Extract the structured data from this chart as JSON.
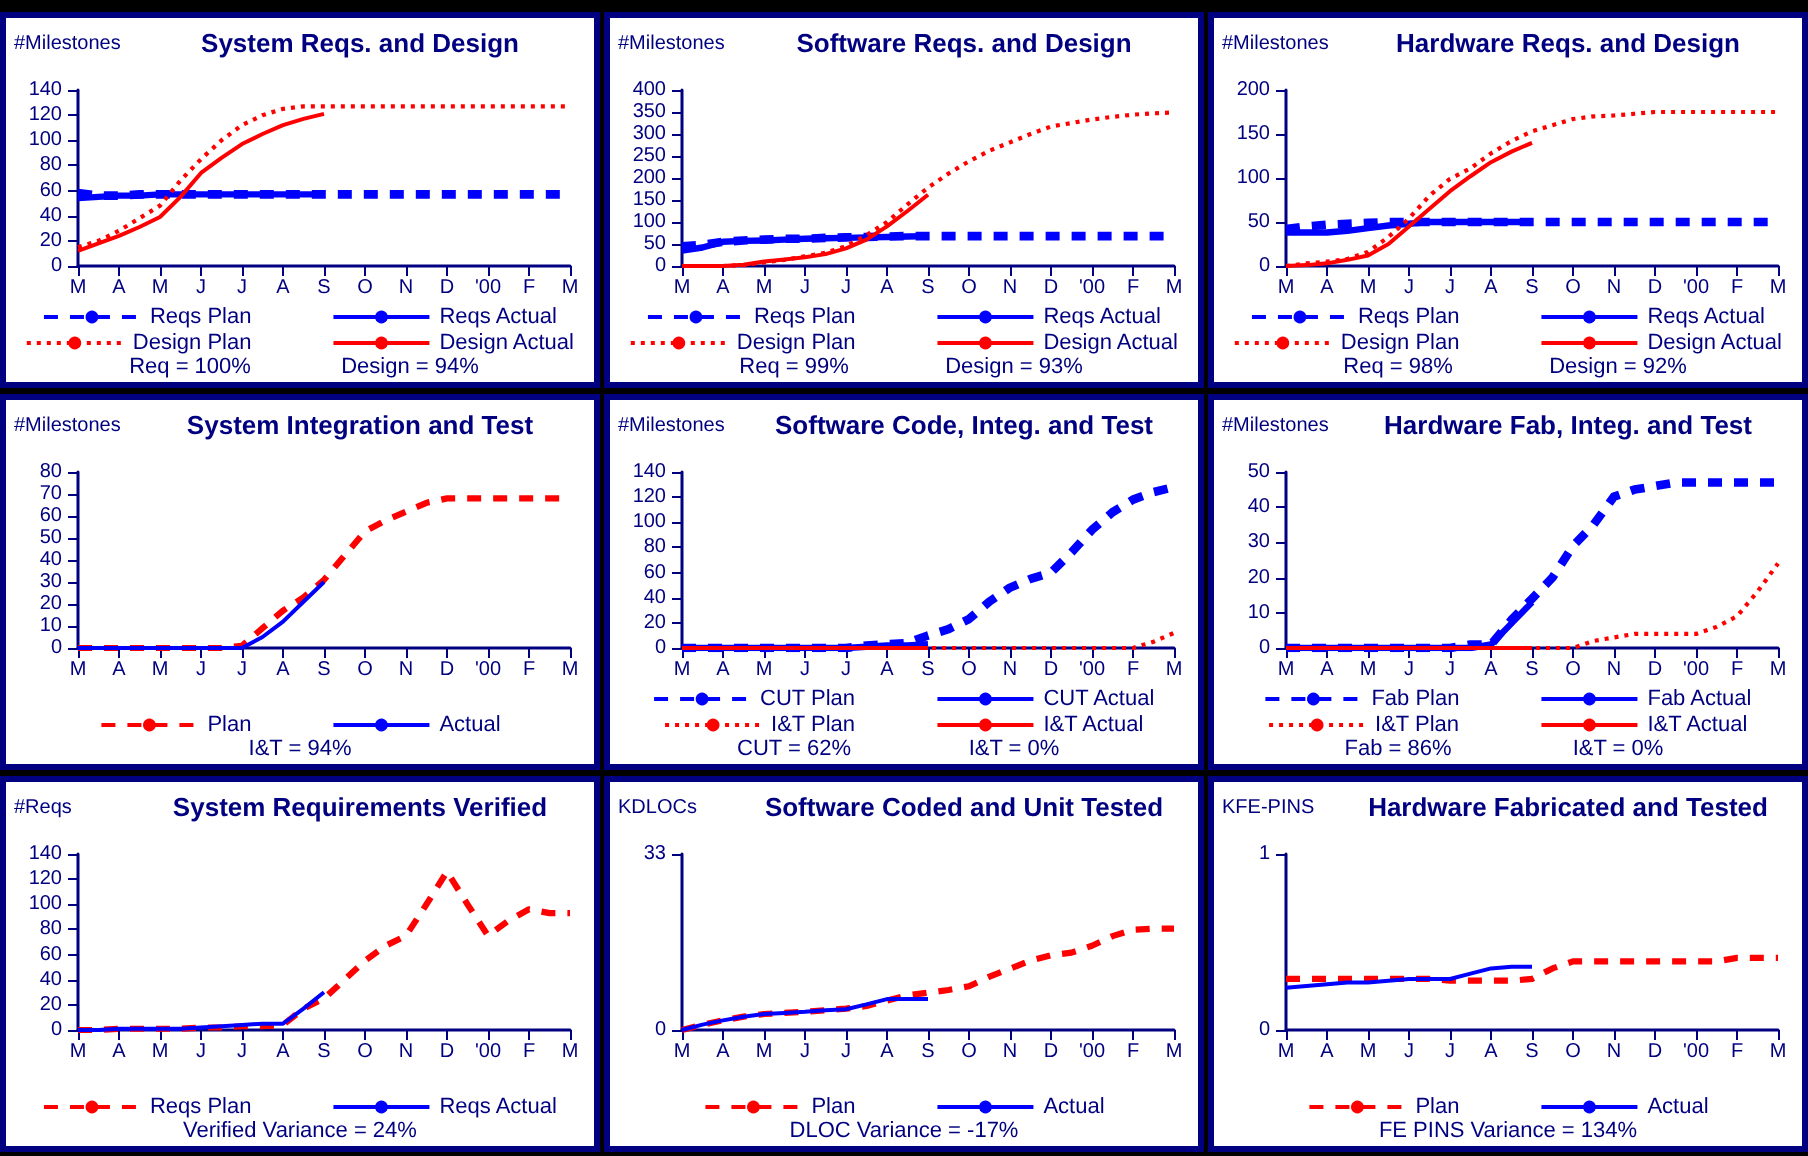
{
  "chart_data": [
    {
      "type": "line",
      "title": "System Reqs. and Design",
      "ylabel": "#Milestones",
      "categories": [
        "M",
        null,
        "A",
        null,
        "M",
        null,
        "J",
        null,
        "J",
        null,
        "A",
        null,
        "S",
        null,
        "O",
        null,
        "N",
        null,
        "D",
        null,
        "'00",
        null,
        "F",
        null,
        "M"
      ],
      "ylim": [
        0,
        140
      ],
      "yticks": [
        0,
        20,
        40,
        60,
        80,
        100,
        120,
        140
      ],
      "legend": "bottom",
      "marker": "none",
      "annotations": [
        "Req = 100%",
        "Design = 94%"
      ],
      "series": [
        {
          "name": "Reqs Plan",
          "color": "#0000ff",
          "line_style": "dashed",
          "values": [
            58,
            56,
            56,
            57,
            57,
            57,
            57,
            57,
            57,
            57,
            57,
            57,
            57,
            57,
            57,
            57,
            57,
            57,
            57,
            57,
            57,
            57,
            57,
            57,
            57
          ]
        },
        {
          "name": "Reqs Actual",
          "color": "#0000ff",
          "line_style": "solid",
          "values": [
            54,
            55,
            56,
            56,
            57,
            57,
            57,
            57,
            57,
            57,
            57,
            57,
            57,
            null,
            null,
            null,
            null,
            null,
            null,
            null,
            null,
            null,
            null,
            null,
            null
          ]
        },
        {
          "name": "Design Plan",
          "color": "#ff0000",
          "line_style": "dotted",
          "values": [
            15,
            20,
            28,
            38,
            48,
            68,
            85,
            100,
            112,
            120,
            125,
            127,
            127,
            127,
            127,
            127,
            127,
            127,
            127,
            127,
            127,
            127,
            127,
            127,
            127
          ]
        },
        {
          "name": "Design Actual",
          "color": "#ff0000",
          "line_style": "solid",
          "values": [
            12,
            18,
            24,
            31,
            39,
            55,
            74,
            86,
            97,
            105,
            112,
            117,
            121,
            null,
            null,
            null,
            null,
            null,
            null,
            null,
            null,
            null,
            null,
            null,
            null
          ]
        }
      ]
    },
    {
      "type": "line",
      "title": "Software Reqs. and Design",
      "ylabel": "#Milestones",
      "categories": [
        "M",
        null,
        "A",
        null,
        "M",
        null,
        "J",
        null,
        "J",
        null,
        "A",
        null,
        "S",
        null,
        "O",
        null,
        "N",
        null,
        "D",
        null,
        "'00",
        null,
        "F",
        null,
        "M"
      ],
      "ylim": [
        0,
        400
      ],
      "yticks": [
        0,
        50,
        100,
        150,
        200,
        250,
        300,
        350,
        400
      ],
      "legend": "bottom",
      "marker": "none",
      "annotations": [
        "Req = 99%",
        "Design = 93%"
      ],
      "series": [
        {
          "name": "Reqs Plan",
          "color": "#0000ff",
          "line_style": "dashed",
          "values": [
            45,
            48,
            55,
            58,
            60,
            62,
            62,
            64,
            65,
            66,
            67,
            68,
            68,
            68,
            68,
            68,
            68,
            68,
            68,
            68,
            68,
            68,
            68,
            68,
            68
          ]
        },
        {
          "name": "Reqs Actual",
          "color": "#0000ff",
          "line_style": "solid",
          "values": [
            35,
            42,
            55,
            57,
            58,
            60,
            62,
            63,
            64,
            65,
            66,
            67,
            68,
            null,
            null,
            null,
            null,
            null,
            null,
            null,
            null,
            null,
            null,
            null,
            null
          ]
        },
        {
          "name": "Design Plan",
          "color": "#ff0000",
          "line_style": "dotted",
          "values": [
            0,
            0,
            0,
            2,
            8,
            14,
            22,
            30,
            45,
            70,
            100,
            140,
            178,
            210,
            238,
            262,
            281,
            300,
            317,
            325,
            333,
            339,
            344,
            347,
            349
          ]
        },
        {
          "name": "Design Actual",
          "color": "#ff0000",
          "line_style": "solid",
          "values": [
            0,
            0,
            0,
            3,
            10,
            15,
            20,
            27,
            40,
            60,
            90,
            125,
            162,
            null,
            null,
            null,
            null,
            null,
            null,
            null,
            null,
            null,
            null,
            null,
            null
          ]
        }
      ]
    },
    {
      "type": "line",
      "title": "Hardware Reqs. and Design",
      "ylabel": "#Milestones",
      "categories": [
        "M",
        null,
        "A",
        null,
        "M",
        null,
        "J",
        null,
        "J",
        null,
        "A",
        null,
        "S",
        null,
        "O",
        null,
        "N",
        null,
        "D",
        null,
        "'00",
        null,
        "F",
        null,
        "M"
      ],
      "ylim": [
        0,
        200
      ],
      "yticks": [
        0,
        50,
        100,
        150,
        200
      ],
      "legend": "bottom",
      "marker": "none",
      "annotations": [
        "Req = 98%",
        "Design = 92%"
      ],
      "series": [
        {
          "name": "Reqs Plan",
          "color": "#0000ff",
          "line_style": "dashed",
          "values": [
            42,
            45,
            47,
            48,
            49,
            50,
            50,
            50,
            50,
            50,
            50,
            50,
            50,
            50,
            50,
            50,
            50,
            50,
            50,
            50,
            50,
            50,
            50,
            50,
            50
          ]
        },
        {
          "name": "Reqs Actual",
          "color": "#0000ff",
          "line_style": "solid",
          "values": [
            38,
            38,
            38,
            40,
            43,
            46,
            48,
            50,
            50,
            50,
            50,
            50,
            50,
            null,
            null,
            null,
            null,
            null,
            null,
            null,
            null,
            null,
            null,
            null,
            null
          ]
        },
        {
          "name": "Design Plan",
          "color": "#ff0000",
          "line_style": "dotted",
          "values": [
            0,
            3,
            5,
            8,
            16,
            33,
            54,
            80,
            99,
            111,
            128,
            142,
            153,
            160,
            167,
            170,
            171,
            173,
            175,
            175,
            175,
            175,
            175,
            175,
            175
          ]
        },
        {
          "name": "Design Actual",
          "color": "#ff0000",
          "line_style": "solid",
          "values": [
            0,
            1,
            3,
            7,
            12,
            25,
            45,
            65,
            85,
            102,
            118,
            130,
            140,
            null,
            null,
            null,
            null,
            null,
            null,
            null,
            null,
            null,
            null,
            null,
            null
          ]
        }
      ]
    },
    {
      "type": "line",
      "title": "System Integration and Test",
      "ylabel": "#Milestones",
      "categories": [
        "M",
        null,
        "A",
        null,
        "M",
        null,
        "J",
        null,
        "J",
        null,
        "A",
        null,
        "S",
        null,
        "O",
        null,
        "N",
        null,
        "D",
        null,
        "'00",
        null,
        "F",
        null,
        "M"
      ],
      "ylim": [
        0,
        80
      ],
      "yticks": [
        0,
        10,
        20,
        30,
        40,
        50,
        60,
        70,
        80
      ],
      "legend": "bottom",
      "marker": "none",
      "annotations": [
        "I&T = 94%"
      ],
      "series": [
        {
          "name": "Plan",
          "color": "#ff0000",
          "line_style": "dashed",
          "values": [
            0,
            0,
            0,
            0,
            0,
            0,
            0,
            0,
            1,
            9,
            17,
            23,
            31,
            42,
            53,
            58,
            62,
            66,
            68,
            68,
            68,
            68,
            68,
            68,
            68
          ]
        },
        {
          "name": "Actual",
          "color": "#0000ff",
          "line_style": "solid",
          "values": [
            0,
            0,
            0,
            0,
            0,
            0,
            0,
            0,
            0,
            5,
            12,
            21,
            30,
            null,
            null,
            null,
            null,
            null,
            null,
            null,
            null,
            null,
            null,
            null,
            null
          ]
        }
      ]
    },
    {
      "type": "line",
      "title": "Software Code, Integ. and Test",
      "ylabel": "#Milestones",
      "categories": [
        "M",
        null,
        "A",
        null,
        "M",
        null,
        "J",
        null,
        "J",
        null,
        "A",
        null,
        "S",
        null,
        "O",
        null,
        "N",
        null,
        "D",
        null,
        "'00",
        null,
        "F",
        null,
        "M"
      ],
      "ylim": [
        0,
        140
      ],
      "yticks": [
        0,
        20,
        40,
        60,
        80,
        100,
        120,
        140
      ],
      "legend": "bottom",
      "marker": "none",
      "annotations": [
        "CUT = 62%",
        "I&T = 0%"
      ],
      "series": [
        {
          "name": "CUT Plan",
          "color": "#0000ff",
          "line_style": "dashed",
          "values": [
            0,
            0,
            0,
            0,
            0,
            0,
            0,
            0,
            0,
            2,
            3,
            4,
            10,
            15,
            23,
            37,
            48,
            55,
            60,
            76,
            94,
            108,
            118,
            124,
            128
          ]
        },
        {
          "name": "CUT Actual",
          "color": "#0000ff",
          "line_style": "solid",
          "values": [
            0,
            0,
            0,
            0,
            0,
            0,
            0,
            0,
            0,
            1,
            2,
            2,
            3,
            null,
            null,
            null,
            null,
            null,
            null,
            null,
            null,
            null,
            null,
            null,
            null
          ]
        },
        {
          "name": "I&T Plan",
          "color": "#ff0000",
          "line_style": "dotted",
          "values": [
            0,
            0,
            0,
            0,
            0,
            0,
            0,
            0,
            0,
            0,
            0,
            0,
            0,
            0,
            0,
            0,
            0,
            0,
            0,
            0,
            0,
            0,
            0,
            5,
            12
          ]
        },
        {
          "name": "I&T Actual",
          "color": "#ff0000",
          "line_style": "solid",
          "values": [
            0,
            0,
            0,
            0,
            0,
            0,
            0,
            0,
            0,
            0,
            0,
            0,
            0,
            null,
            null,
            null,
            null,
            null,
            null,
            null,
            null,
            null,
            null,
            null,
            null
          ]
        }
      ]
    },
    {
      "type": "line",
      "title": "Hardware Fab, Integ. and Test",
      "ylabel": "#Milestones",
      "categories": [
        "M",
        null,
        "A",
        null,
        "M",
        null,
        "J",
        null,
        "J",
        null,
        "A",
        null,
        "S",
        null,
        "O",
        null,
        "N",
        null,
        "D",
        null,
        "'00",
        null,
        "F",
        null,
        "M"
      ],
      "ylim": [
        0,
        50
      ],
      "yticks": [
        0,
        10,
        20,
        30,
        40,
        50
      ],
      "legend": "bottom",
      "marker": "none",
      "annotations": [
        "Fab = 86%",
        "I&T = 0%"
      ],
      "series": [
        {
          "name": "Fab Plan",
          "color": "#0000ff",
          "line_style": "dashed",
          "values": [
            0,
            0,
            0,
            0,
            0,
            0,
            0,
            0,
            0,
            1,
            1,
            8,
            14,
            20,
            29,
            35,
            43,
            45,
            46,
            47,
            47,
            47,
            47,
            47,
            47
          ]
        },
        {
          "name": "Fab Actual",
          "color": "#0000ff",
          "line_style": "solid",
          "values": [
            0,
            0,
            0,
            0,
            0,
            0,
            0,
            0,
            0,
            0,
            1,
            7,
            13,
            null,
            null,
            null,
            null,
            null,
            null,
            null,
            null,
            null,
            null,
            null,
            null
          ]
        },
        {
          "name": "I&T Plan",
          "color": "#ff0000",
          "line_style": "dotted",
          "values": [
            0,
            0,
            0,
            0,
            0,
            0,
            0,
            0,
            0,
            0,
            0,
            0,
            0,
            0,
            0,
            2,
            3,
            4,
            4,
            4,
            4,
            6,
            9,
            16,
            24
          ]
        },
        {
          "name": "I&T Actual",
          "color": "#ff0000",
          "line_style": "solid",
          "values": [
            0,
            0,
            0,
            0,
            0,
            0,
            0,
            0,
            0,
            0,
            0,
            0,
            0,
            null,
            null,
            null,
            null,
            null,
            null,
            null,
            null,
            null,
            null,
            null,
            null
          ]
        }
      ]
    },
    {
      "type": "line",
      "title": "System Requirements Verified",
      "ylabel": "#Reqs",
      "categories": [
        "M",
        null,
        "A",
        null,
        "M",
        null,
        "J",
        null,
        "J",
        null,
        "A",
        null,
        "S",
        null,
        "O",
        null,
        "N",
        null,
        "D",
        null,
        "'00",
        null,
        "F",
        null,
        "M"
      ],
      "ylim": [
        0,
        140
      ],
      "yticks": [
        0,
        20,
        40,
        60,
        80,
        100,
        120,
        140
      ],
      "legend": "bottom",
      "marker": "none",
      "annotations": [
        "Verified Variance = 24%"
      ],
      "series": [
        {
          "name": "Reqs Plan",
          "color": "#ff0000",
          "line_style": "dashed",
          "values": [
            0,
            0,
            1,
            1,
            1,
            1,
            2,
            2,
            3,
            3,
            4,
            17,
            25,
            40,
            55,
            67,
            75,
            100,
            126,
            100,
            75,
            87,
            96,
            93,
            93
          ]
        },
        {
          "name": "Reqs Actual",
          "color": "#0000ff",
          "line_style": "solid",
          "values": [
            0,
            0,
            1,
            1,
            1,
            1,
            2,
            3,
            4,
            5,
            5,
            17,
            30,
            null,
            null,
            null,
            null,
            null,
            null,
            null,
            null,
            null,
            null,
            null,
            null
          ]
        }
      ]
    },
    {
      "type": "line",
      "title": "Software Coded and Unit Tested",
      "ylabel": "KDLOCs",
      "categories": [
        "M",
        null,
        "A",
        null,
        "M",
        null,
        "J",
        null,
        "J",
        null,
        "A",
        null,
        "S",
        null,
        "O",
        null,
        "N",
        null,
        "D",
        null,
        "'00",
        null,
        "F",
        null,
        "M"
      ],
      "ylim": [
        0,
        33
      ],
      "yticks": [
        0,
        33
      ],
      "legend": "bottom",
      "marker": "none",
      "annotations": [
        "DLOC Variance = -17%"
      ],
      "series": [
        {
          "name": "Plan",
          "color": "#ff0000",
          "line_style": "dashed",
          "values": [
            0,
            1,
            1.8,
            2.5,
            3,
            3.2,
            3.4,
            3.7,
            4,
            4.5,
            5.5,
            6.5,
            7,
            7.5,
            8.2,
            10,
            11.5,
            13,
            14,
            14.5,
            15.8,
            17.6,
            18.8,
            19,
            19
          ]
        },
        {
          "name": "Actual",
          "color": "#0000ff",
          "line_style": "solid",
          "values": [
            0,
            1,
            1.8,
            2.5,
            3,
            3.2,
            3.4,
            3.7,
            3.9,
            4.8,
            5.8,
            5.8,
            5.8,
            null,
            null,
            null,
            null,
            null,
            null,
            null,
            null,
            null,
            null,
            null,
            null
          ]
        }
      ]
    },
    {
      "type": "line",
      "title": "Hardware Fabricated and Tested",
      "ylabel": "KFE-PINS",
      "categories": [
        "M",
        null,
        "A",
        null,
        "M",
        null,
        "J",
        null,
        "J",
        null,
        "A",
        null,
        "S",
        null,
        "O",
        null,
        "N",
        null,
        "D",
        null,
        "'00",
        null,
        "F",
        null,
        "M"
      ],
      "ylim": [
        0,
        1
      ],
      "yticks": [
        0,
        1
      ],
      "legend": "bottom",
      "marker": "none",
      "annotations": [
        "FE PINS Variance = 134%"
      ],
      "series": [
        {
          "name": "Plan",
          "color": "#ff0000",
          "line_style": "dashed",
          "values": [
            0.29,
            0.29,
            0.29,
            0.29,
            0.29,
            0.29,
            0.29,
            0.29,
            0.28,
            0.28,
            0.28,
            0.28,
            0.29,
            0.35,
            0.39,
            0.39,
            0.39,
            0.39,
            0.39,
            0.39,
            0.39,
            0.39,
            0.41,
            0.41,
            0.41
          ]
        },
        {
          "name": "Actual",
          "color": "#0000ff",
          "line_style": "solid",
          "values": [
            0.24,
            0.25,
            0.26,
            0.27,
            0.27,
            0.28,
            0.29,
            0.29,
            0.29,
            0.32,
            0.35,
            0.36,
            0.36,
            null,
            null,
            null,
            null,
            null,
            null,
            null,
            null,
            null,
            null,
            null,
            null
          ]
        }
      ]
    }
  ]
}
